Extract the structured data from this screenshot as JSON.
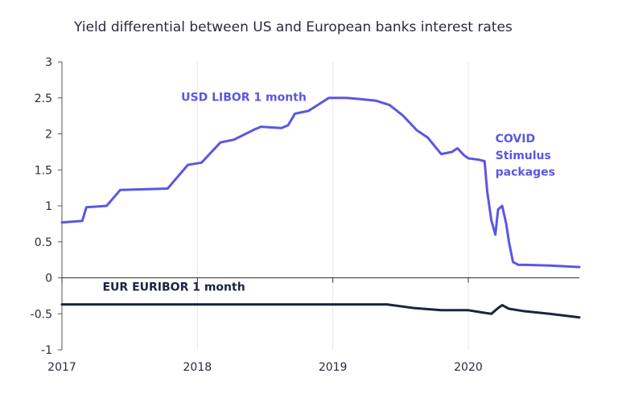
{
  "chart_data": {
    "type": "line",
    "title": "Yield differential between US and European banks interest rates",
    "xlabel": "",
    "ylabel": "",
    "xlim": [
      2017.0,
      2020.82
    ],
    "ylim": [
      -1,
      3
    ],
    "x_ticks": [
      2017,
      2018,
      2019,
      2020
    ],
    "x_tick_labels": [
      "2017",
      "2018",
      "2019",
      "2020"
    ],
    "y_ticks": [
      3,
      2.5,
      2,
      1.5,
      1,
      0.5,
      0,
      -0.5,
      -1
    ],
    "y_tick_labels": [
      "3",
      "2.5",
      "2",
      "1.5",
      "1",
      "0.5",
      "0",
      "-0.5",
      "-1"
    ],
    "grid": "vertical lines at year ticks",
    "annotations": [
      {
        "text": "COVID",
        "x": 2020.2,
        "y": 1.88
      },
      {
        "text": "Stimulus",
        "x": 2020.2,
        "y": 1.65
      },
      {
        "text": "packages",
        "x": 2020.2,
        "y": 1.42
      }
    ],
    "series": [
      {
        "name": "USD LIBOR 1 month",
        "label_x": 2017.88,
        "label_y": 2.46,
        "color": "#5b57e0",
        "x": [
          2017.0,
          2017.15,
          2017.18,
          2017.33,
          2017.43,
          2017.78,
          2017.93,
          2018.03,
          2018.17,
          2018.27,
          2018.42,
          2018.47,
          2018.62,
          2018.67,
          2018.72,
          2018.82,
          2018.97,
          2019.1,
          2019.22,
          2019.32,
          2019.42,
          2019.52,
          2019.62,
          2019.7,
          2019.8,
          2019.88,
          2019.92,
          2019.97,
          2020.0,
          2020.08,
          2020.12,
          2020.14,
          2020.17,
          2020.2,
          2020.22,
          2020.25,
          2020.28,
          2020.3,
          2020.33,
          2020.37,
          2020.42,
          2020.6,
          2020.82
        ],
        "y": [
          0.77,
          0.79,
          0.98,
          1.0,
          1.22,
          1.24,
          1.57,
          1.6,
          1.88,
          1.92,
          2.06,
          2.1,
          2.08,
          2.12,
          2.28,
          2.32,
          2.5,
          2.5,
          2.48,
          2.46,
          2.4,
          2.25,
          2.05,
          1.95,
          1.72,
          1.75,
          1.8,
          1.7,
          1.66,
          1.64,
          1.62,
          1.2,
          0.8,
          0.6,
          0.95,
          1.0,
          0.75,
          0.5,
          0.22,
          0.18,
          0.18,
          0.17,
          0.15
        ]
      },
      {
        "name": "EUR EURIBOR 1 month",
        "label_x": 2017.3,
        "label_y": -0.18,
        "color": "#1b2440",
        "x": [
          2017.0,
          2017.5,
          2018.0,
          2018.5,
          2019.0,
          2019.4,
          2019.6,
          2019.8,
          2020.0,
          2020.1,
          2020.17,
          2020.22,
          2020.25,
          2020.3,
          2020.4,
          2020.6,
          2020.82
        ],
        "y": [
          -0.37,
          -0.37,
          -0.37,
          -0.37,
          -0.37,
          -0.37,
          -0.42,
          -0.45,
          -0.45,
          -0.48,
          -0.5,
          -0.42,
          -0.38,
          -0.43,
          -0.46,
          -0.5,
          -0.55
        ]
      }
    ]
  }
}
